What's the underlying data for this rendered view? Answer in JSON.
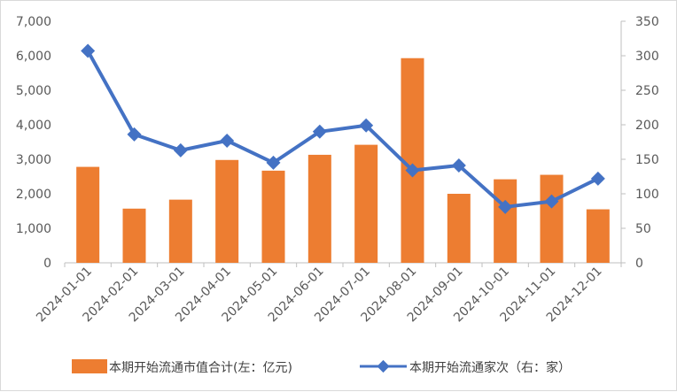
{
  "chart_data": {
    "type": "bar+line",
    "categories": [
      "2024-01-01",
      "2024-02-01",
      "2024-03-01",
      "2024-04-01",
      "2024-05-01",
      "2024-06-01",
      "2024-07-01",
      "2024-08-01",
      "2024-09-01",
      "2024-10-01",
      "2024-11-01",
      "2024-12-01"
    ],
    "series": [
      {
        "name": "本期开始流通市值合计(左：亿元)",
        "type": "bar",
        "axis": "left",
        "color": "#ED7D31",
        "values": [
          2780,
          1570,
          1830,
          2980,
          2670,
          3130,
          3420,
          5930,
          2000,
          2420,
          2550,
          1550
        ]
      },
      {
        "name": "本期开始流通家次（右：家）",
        "type": "line",
        "axis": "right",
        "color": "#4472C4",
        "marker": "diamond",
        "values": [
          307,
          186,
          163,
          177,
          145,
          190,
          199,
          134,
          141,
          81,
          89,
          122
        ]
      }
    ],
    "y_left": {
      "min": 0,
      "max": 7000,
      "ticks": [
        "0",
        "1,000",
        "2,000",
        "3,000",
        "4,000",
        "5,000",
        "6,000",
        "7,000"
      ]
    },
    "y_right": {
      "min": 0,
      "max": 350,
      "ticks": [
        "0",
        "50",
        "100",
        "150",
        "200",
        "250",
        "300",
        "350"
      ]
    },
    "grid": false,
    "legend_position": "bottom"
  }
}
